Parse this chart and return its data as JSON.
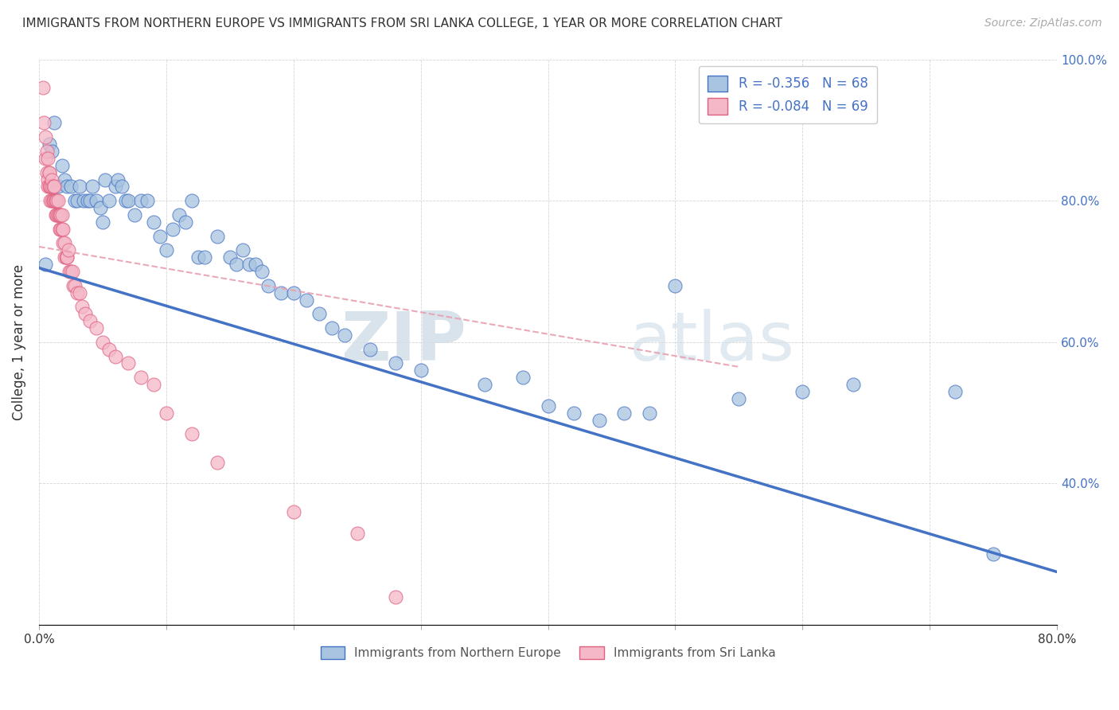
{
  "title": "IMMIGRANTS FROM NORTHERN EUROPE VS IMMIGRANTS FROM SRI LANKA COLLEGE, 1 YEAR OR MORE CORRELATION CHART",
  "source": "Source: ZipAtlas.com",
  "xlabel": "",
  "ylabel": "College, 1 year or more",
  "xlim": [
    0.0,
    0.8
  ],
  "ylim": [
    0.2,
    1.0
  ],
  "xticks": [
    0.0,
    0.1,
    0.2,
    0.3,
    0.4,
    0.5,
    0.6,
    0.7,
    0.8
  ],
  "xticklabels": [
    "0.0%",
    "",
    "",
    "",
    "",
    "",
    "",
    "",
    "80.0%"
  ],
  "yticks": [
    0.2,
    0.4,
    0.6,
    0.8,
    1.0
  ],
  "yticklabels": [
    "",
    "40.0%",
    "60.0%",
    "80.0%",
    "100.0%"
  ],
  "blue_R": -0.356,
  "blue_N": 68,
  "pink_R": -0.084,
  "pink_N": 69,
  "blue_color": "#a8c4e0",
  "blue_line_color": "#4472c4",
  "pink_color": "#f4b8c8",
  "pink_line_color": "#e06080",
  "pink_line_color_dashed": "#e8a0b0",
  "watermark_zip": "ZIP",
  "watermark_atlas": "atlas",
  "blue_line_x": [
    0.0,
    0.8
  ],
  "blue_line_y": [
    0.705,
    0.275
  ],
  "pink_line_x": [
    0.0,
    0.55
  ],
  "pink_line_y": [
    0.735,
    0.565
  ],
  "blue_scatter_x": [
    0.005,
    0.008,
    0.01,
    0.012,
    0.015,
    0.018,
    0.02,
    0.022,
    0.025,
    0.028,
    0.03,
    0.032,
    0.035,
    0.038,
    0.04,
    0.042,
    0.045,
    0.048,
    0.05,
    0.052,
    0.055,
    0.06,
    0.062,
    0.065,
    0.068,
    0.07,
    0.075,
    0.08,
    0.085,
    0.09,
    0.095,
    0.1,
    0.105,
    0.11,
    0.115,
    0.12,
    0.125,
    0.13,
    0.14,
    0.15,
    0.155,
    0.16,
    0.165,
    0.17,
    0.175,
    0.18,
    0.19,
    0.2,
    0.21,
    0.22,
    0.23,
    0.24,
    0.26,
    0.28,
    0.3,
    0.35,
    0.38,
    0.4,
    0.42,
    0.44,
    0.46,
    0.48,
    0.5,
    0.55,
    0.6,
    0.64,
    0.72,
    0.75
  ],
  "blue_scatter_y": [
    0.71,
    0.88,
    0.87,
    0.91,
    0.82,
    0.85,
    0.83,
    0.82,
    0.82,
    0.8,
    0.8,
    0.82,
    0.8,
    0.8,
    0.8,
    0.82,
    0.8,
    0.79,
    0.77,
    0.83,
    0.8,
    0.82,
    0.83,
    0.82,
    0.8,
    0.8,
    0.78,
    0.8,
    0.8,
    0.77,
    0.75,
    0.73,
    0.76,
    0.78,
    0.77,
    0.8,
    0.72,
    0.72,
    0.75,
    0.72,
    0.71,
    0.73,
    0.71,
    0.71,
    0.7,
    0.68,
    0.67,
    0.67,
    0.66,
    0.64,
    0.62,
    0.61,
    0.59,
    0.57,
    0.56,
    0.54,
    0.55,
    0.51,
    0.5,
    0.49,
    0.5,
    0.5,
    0.68,
    0.52,
    0.53,
    0.54,
    0.53,
    0.3
  ],
  "pink_scatter_x": [
    0.003,
    0.004,
    0.005,
    0.005,
    0.006,
    0.006,
    0.007,
    0.007,
    0.007,
    0.008,
    0.008,
    0.008,
    0.009,
    0.009,
    0.009,
    0.01,
    0.01,
    0.01,
    0.011,
    0.011,
    0.011,
    0.012,
    0.012,
    0.013,
    0.013,
    0.013,
    0.014,
    0.014,
    0.015,
    0.015,
    0.015,
    0.016,
    0.016,
    0.016,
    0.017,
    0.017,
    0.018,
    0.018,
    0.019,
    0.019,
    0.02,
    0.02,
    0.021,
    0.022,
    0.022,
    0.023,
    0.024,
    0.025,
    0.026,
    0.027,
    0.028,
    0.03,
    0.032,
    0.034,
    0.036,
    0.04,
    0.045,
    0.05,
    0.055,
    0.06,
    0.07,
    0.08,
    0.09,
    0.1,
    0.12,
    0.14,
    0.2,
    0.25,
    0.28
  ],
  "pink_scatter_y": [
    0.96,
    0.91,
    0.89,
    0.86,
    0.84,
    0.87,
    0.83,
    0.82,
    0.86,
    0.84,
    0.82,
    0.84,
    0.82,
    0.82,
    0.8,
    0.82,
    0.83,
    0.8,
    0.8,
    0.82,
    0.8,
    0.8,
    0.82,
    0.78,
    0.8,
    0.8,
    0.78,
    0.8,
    0.78,
    0.8,
    0.78,
    0.78,
    0.76,
    0.78,
    0.76,
    0.78,
    0.76,
    0.78,
    0.74,
    0.76,
    0.74,
    0.72,
    0.72,
    0.72,
    0.72,
    0.73,
    0.7,
    0.7,
    0.7,
    0.68,
    0.68,
    0.67,
    0.67,
    0.65,
    0.64,
    0.63,
    0.62,
    0.6,
    0.59,
    0.58,
    0.57,
    0.55,
    0.54,
    0.5,
    0.47,
    0.43,
    0.36,
    0.33,
    0.24
  ]
}
